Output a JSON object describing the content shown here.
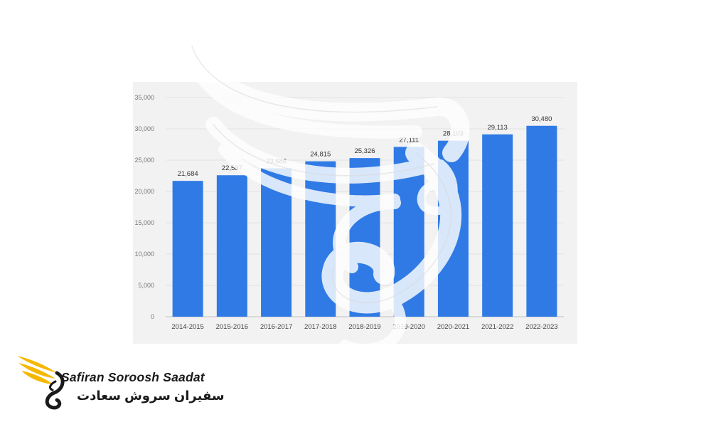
{
  "chart_data": {
    "type": "bar",
    "categories": [
      "2014-2015",
      "2015-2016",
      "2016-2017",
      "2017-2018",
      "2018-2019",
      "2019-2020",
      "2020-2021",
      "2021-2022",
      "2022-2023"
    ],
    "values": [
      21684,
      22587,
      23686,
      24815,
      25326,
      27111,
      28103,
      29113,
      30480
    ],
    "value_labels": [
      "21,684",
      "22,587",
      "23,686",
      "24,815",
      "25,326",
      "27,111",
      "28,103",
      "29,113",
      "30,480"
    ],
    "y_ticks": [
      "0",
      "5,000",
      "10,000",
      "15,000",
      "20,000",
      "25,000",
      "30,000",
      "35,000"
    ],
    "ylim": [
      0,
      35000
    ],
    "bar_color": "#2f7ae5",
    "background_color": "#f2f2f2",
    "grid": true
  },
  "logo": {
    "name_en": "Safiran Soroosh Saadat",
    "name_fa": "سفیران سروش سعادت",
    "accent_color": "#f5b800"
  }
}
